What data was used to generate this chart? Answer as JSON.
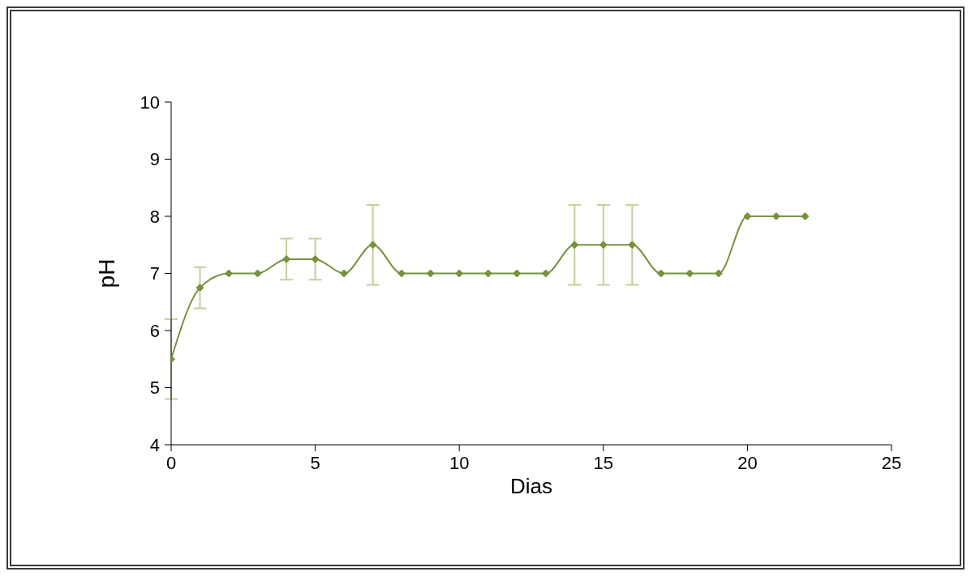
{
  "chart_data": {
    "type": "line",
    "xlabel": "Dias",
    "ylabel": "pH",
    "x": [
      0,
      1,
      2,
      3,
      4,
      5,
      6,
      7,
      8,
      9,
      10,
      11,
      12,
      13,
      14,
      15,
      16,
      17,
      18,
      19,
      20,
      21,
      22
    ],
    "series": [
      {
        "color": "#76923c",
        "values": [
          5.5,
          6.75,
          7,
          7,
          7.25,
          7.25,
          7,
          7.5,
          7,
          7,
          7,
          7,
          7,
          7,
          7.5,
          7.5,
          7.5,
          7,
          7,
          7,
          8,
          8,
          8
        ],
        "errors": [
          0.7,
          0.36,
          null,
          null,
          0.36,
          0.36,
          null,
          0.7,
          null,
          null,
          null,
          null,
          null,
          null,
          0.7,
          0.7,
          0.7,
          null,
          null,
          null,
          null,
          null,
          null
        ]
      }
    ],
    "xlim": [
      0,
      25
    ],
    "xticks": [
      0,
      5,
      10,
      15,
      20,
      25
    ],
    "ylim": [
      4,
      10
    ],
    "yticks": [
      4,
      5,
      6,
      7,
      8,
      9,
      10
    ],
    "grid": false,
    "legend": false,
    "marker": "diamond",
    "line_style": "solid"
  }
}
